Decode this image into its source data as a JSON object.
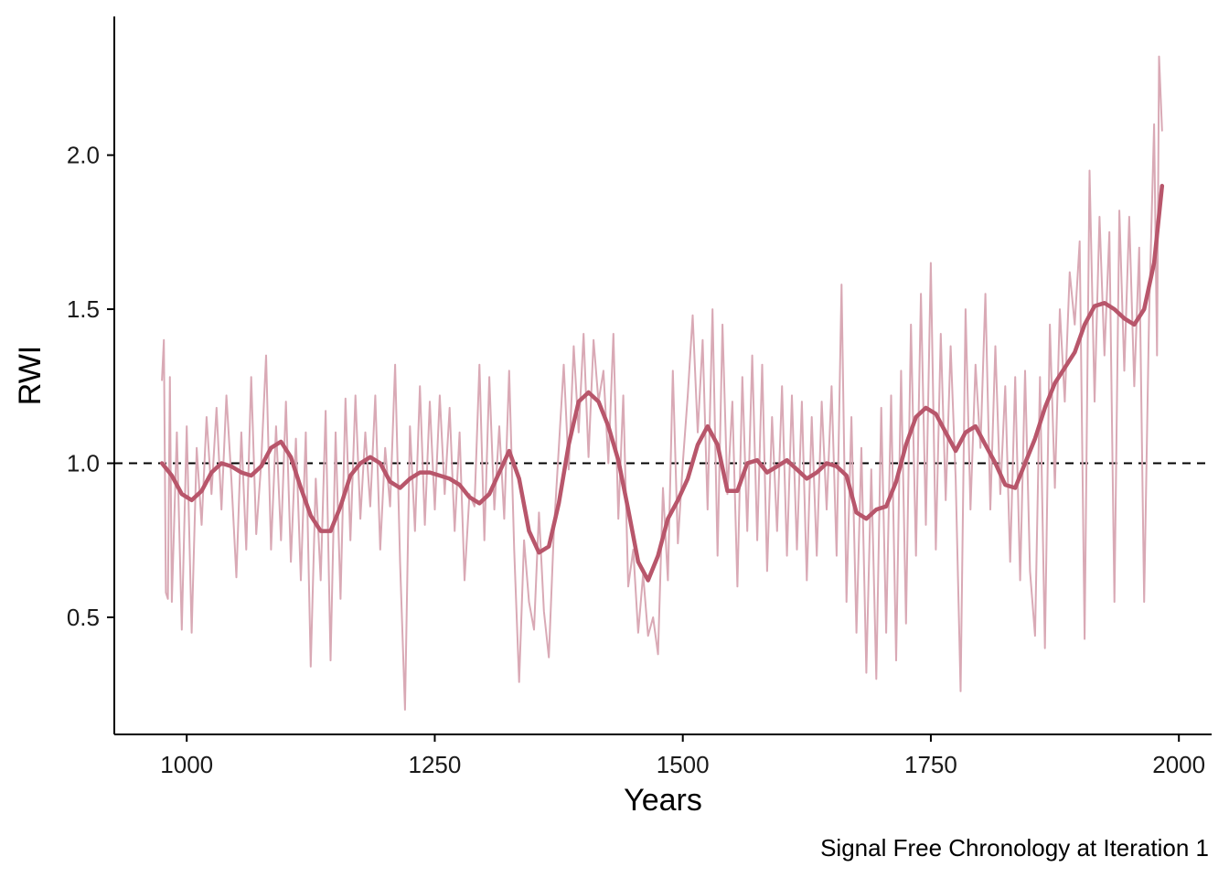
{
  "chart_data": {
    "type": "line",
    "title": "",
    "caption": "Signal Free Chronology at Iteration 1",
    "xlabel": "Years",
    "ylabel": "RWI",
    "xlim": [
      927,
      2033
    ],
    "ylim": [
      0.12,
      2.45
    ],
    "x_ticks": [
      1000,
      1250,
      1500,
      1750,
      2000
    ],
    "x_tick_labels": [
      "1000",
      "1250",
      "1500",
      "1750",
      "2000"
    ],
    "y_ticks": [
      0.5,
      1.0,
      1.5,
      2.0
    ],
    "y_tick_labels": [
      "0.5",
      "1.0",
      "1.5",
      "2.0"
    ],
    "reference_line": {
      "y": 1.0,
      "style": "dashed"
    },
    "grid": false,
    "legend": "none",
    "colors": {
      "raw": "#d9a9b5",
      "smooth": "#b8566b",
      "reference": "#000000"
    },
    "year_range": [
      975,
      1983
    ],
    "series": [
      {
        "style": "raw",
        "note": "annual series, noisy (sampled every ~5 years)",
        "x": [
          975,
          977,
          979,
          981,
          983,
          985,
          990,
          995,
          1000,
          1005,
          1010,
          1015,
          1020,
          1025,
          1030,
          1035,
          1040,
          1045,
          1050,
          1055,
          1060,
          1065,
          1070,
          1075,
          1080,
          1085,
          1090,
          1095,
          1100,
          1105,
          1110,
          1115,
          1120,
          1125,
          1130,
          1135,
          1140,
          1145,
          1150,
          1155,
          1160,
          1165,
          1170,
          1175,
          1180,
          1185,
          1190,
          1195,
          1200,
          1205,
          1210,
          1215,
          1220,
          1225,
          1230,
          1235,
          1240,
          1245,
          1250,
          1255,
          1260,
          1265,
          1270,
          1275,
          1280,
          1285,
          1290,
          1295,
          1300,
          1305,
          1310,
          1315,
          1320,
          1325,
          1330,
          1335,
          1340,
          1345,
          1350,
          1355,
          1360,
          1365,
          1370,
          1375,
          1380,
          1385,
          1390,
          1395,
          1400,
          1405,
          1410,
          1415,
          1420,
          1425,
          1430,
          1435,
          1440,
          1445,
          1450,
          1455,
          1460,
          1465,
          1470,
          1475,
          1480,
          1485,
          1490,
          1495,
          1500,
          1505,
          1510,
          1515,
          1520,
          1525,
          1530,
          1535,
          1540,
          1545,
          1550,
          1555,
          1560,
          1565,
          1570,
          1575,
          1580,
          1585,
          1590,
          1595,
          1600,
          1605,
          1610,
          1615,
          1620,
          1625,
          1630,
          1635,
          1640,
          1645,
          1650,
          1655,
          1660,
          1665,
          1670,
          1675,
          1680,
          1685,
          1690,
          1695,
          1700,
          1705,
          1710,
          1715,
          1720,
          1725,
          1730,
          1735,
          1740,
          1745,
          1750,
          1755,
          1760,
          1765,
          1770,
          1775,
          1780,
          1785,
          1790,
          1795,
          1800,
          1805,
          1810,
          1815,
          1820,
          1825,
          1830,
          1835,
          1840,
          1845,
          1850,
          1855,
          1860,
          1865,
          1870,
          1875,
          1880,
          1885,
          1890,
          1895,
          1900,
          1905,
          1910,
          1915,
          1920,
          1925,
          1930,
          1935,
          1940,
          1945,
          1950,
          1955,
          1960,
          1965,
          1970,
          1975,
          1978,
          1980,
          1983
        ],
        "values": [
          1.27,
          1.4,
          0.58,
          0.56,
          1.28,
          0.55,
          1.1,
          0.46,
          1.12,
          0.45,
          1.05,
          0.8,
          1.15,
          0.9,
          1.18,
          0.85,
          1.22,
          0.95,
          0.63,
          1.1,
          0.72,
          1.28,
          0.77,
          1.0,
          1.35,
          0.72,
          1.12,
          0.75,
          1.2,
          0.68,
          1.08,
          0.62,
          1.1,
          0.34,
          0.95,
          0.62,
          1.17,
          0.36,
          1.1,
          0.56,
          1.21,
          0.75,
          1.22,
          0.82,
          1.1,
          0.86,
          1.22,
          0.72,
          1.05,
          0.86,
          1.32,
          0.68,
          0.2,
          1.12,
          0.78,
          1.25,
          0.8,
          1.2,
          0.85,
          1.22,
          0.9,
          1.18,
          0.78,
          1.1,
          0.62,
          0.9,
          0.86,
          1.32,
          0.75,
          1.28,
          0.85,
          1.12,
          0.82,
          1.3,
          0.72,
          0.29,
          0.75,
          0.55,
          0.46,
          0.84,
          0.52,
          0.37,
          0.78,
          1.05,
          1.32,
          0.98,
          1.38,
          1.1,
          1.42,
          1.02,
          1.4,
          1.2,
          1.3,
          1.0,
          1.42,
          0.82,
          1.22,
          0.6,
          0.72,
          0.45,
          0.64,
          0.44,
          0.5,
          0.38,
          0.92,
          0.62,
          1.3,
          0.74,
          1.0,
          1.22,
          1.48,
          1.1,
          1.4,
          0.85,
          1.5,
          0.7,
          1.45,
          0.9,
          1.2,
          0.6,
          1.28,
          0.78,
          1.35,
          0.75,
          1.32,
          0.65,
          1.15,
          0.78,
          1.25,
          0.7,
          1.22,
          0.72,
          1.2,
          0.62,
          1.15,
          0.7,
          1.2,
          0.85,
          1.25,
          0.7,
          1.58,
          0.55,
          1.15,
          0.45,
          1.05,
          0.32,
          0.98,
          0.3,
          1.18,
          0.45,
          1.22,
          0.36,
          1.3,
          0.48,
          1.45,
          0.7,
          1.55,
          0.8,
          1.65,
          0.72,
          1.42,
          0.88,
          1.38,
          0.95,
          0.26,
          1.5,
          0.85,
          1.32,
          1.05,
          1.55,
          0.85,
          1.38,
          0.9,
          1.25,
          0.68,
          1.28,
          0.62,
          1.3,
          0.65,
          0.44,
          1.28,
          0.4,
          1.45,
          0.92,
          1.5,
          1.2,
          1.62,
          1.45,
          1.72,
          0.43,
          1.95,
          1.2,
          1.8,
          1.35,
          1.75,
          0.55,
          1.82,
          1.3,
          1.8,
          1.25,
          1.7,
          0.55,
          1.48,
          2.1,
          1.35,
          2.32,
          2.08
        ]
      },
      {
        "style": "smooth",
        "note": "smoothed spline",
        "x": [
          975,
          985,
          995,
          1005,
          1015,
          1025,
          1035,
          1045,
          1055,
          1065,
          1075,
          1085,
          1095,
          1105,
          1115,
          1125,
          1135,
          1145,
          1155,
          1165,
          1175,
          1185,
          1195,
          1205,
          1215,
          1225,
          1235,
          1245,
          1255,
          1265,
          1275,
          1285,
          1295,
          1305,
          1315,
          1325,
          1335,
          1345,
          1355,
          1365,
          1375,
          1385,
          1395,
          1405,
          1415,
          1425,
          1435,
          1445,
          1455,
          1465,
          1475,
          1485,
          1495,
          1505,
          1515,
          1525,
          1535,
          1545,
          1555,
          1565,
          1575,
          1585,
          1595,
          1605,
          1615,
          1625,
          1635,
          1645,
          1655,
          1665,
          1675,
          1685,
          1695,
          1705,
          1715,
          1725,
          1735,
          1745,
          1755,
          1765,
          1775,
          1785,
          1795,
          1805,
          1815,
          1825,
          1835,
          1845,
          1855,
          1865,
          1875,
          1885,
          1895,
          1905,
          1915,
          1925,
          1935,
          1945,
          1955,
          1965,
          1975,
          1983
        ],
        "values": [
          1.0,
          0.96,
          0.9,
          0.88,
          0.91,
          0.97,
          1.0,
          0.99,
          0.97,
          0.96,
          0.99,
          1.05,
          1.07,
          1.02,
          0.92,
          0.83,
          0.78,
          0.78,
          0.86,
          0.96,
          1.0,
          1.02,
          1.0,
          0.94,
          0.92,
          0.95,
          0.97,
          0.97,
          0.96,
          0.95,
          0.93,
          0.89,
          0.87,
          0.9,
          0.97,
          1.04,
          0.95,
          0.78,
          0.71,
          0.73,
          0.87,
          1.06,
          1.2,
          1.23,
          1.2,
          1.12,
          1.01,
          0.85,
          0.68,
          0.62,
          0.7,
          0.82,
          0.88,
          0.95,
          1.06,
          1.12,
          1.06,
          0.91,
          0.91,
          1.0,
          1.01,
          0.97,
          0.99,
          1.01,
          0.98,
          0.95,
          0.97,
          1.0,
          0.99,
          0.96,
          0.84,
          0.82,
          0.85,
          0.86,
          0.94,
          1.06,
          1.15,
          1.18,
          1.16,
          1.1,
          1.04,
          1.1,
          1.12,
          1.06,
          1.0,
          0.93,
          0.92,
          1.0,
          1.08,
          1.18,
          1.26,
          1.31,
          1.36,
          1.45,
          1.51,
          1.52,
          1.5,
          1.47,
          1.45,
          1.5,
          1.65,
          1.9
        ]
      }
    ]
  }
}
